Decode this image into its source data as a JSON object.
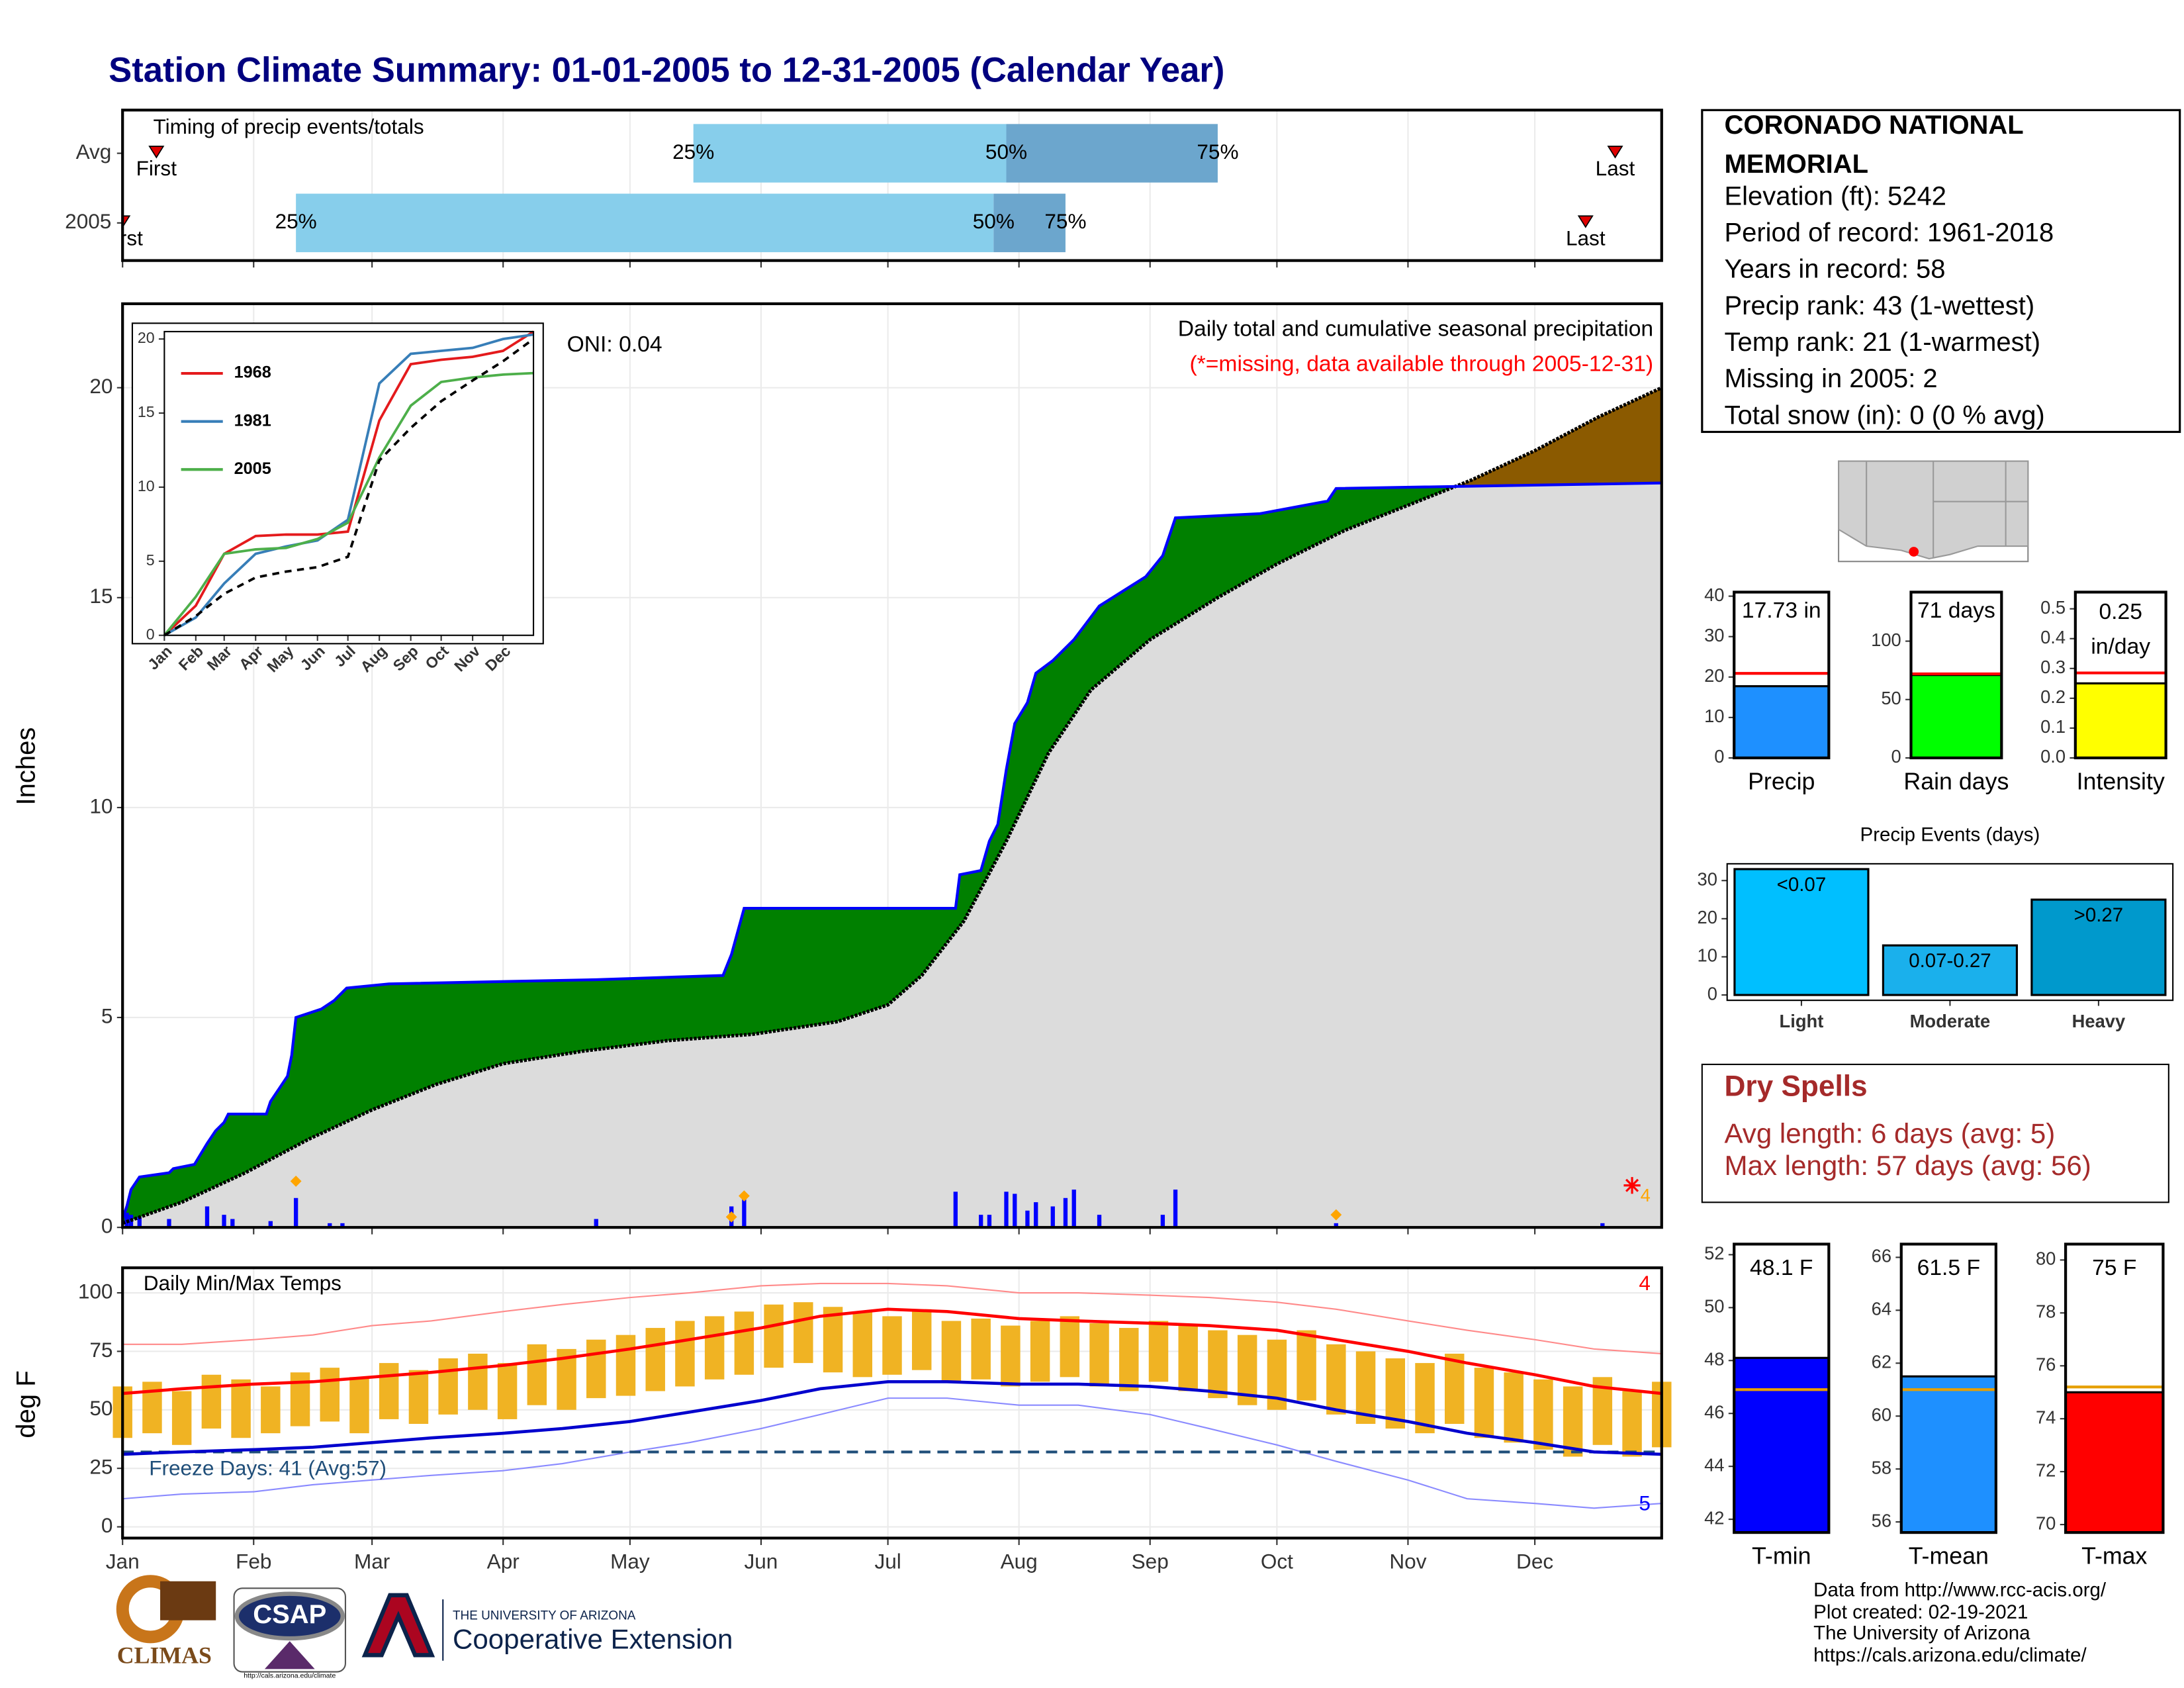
{
  "title": "Station Climate Summary: 01-01-2005 to 12-31-2005 (Calendar Year)",
  "station": {
    "name_lines": [
      "CORONADO NATIONAL",
      "MEMORIAL"
    ],
    "lines": [
      "Elevation (ft): 5242",
      "Period of record: 1961-2018",
      "Years in record: 58",
      "Precip rank: 43 (1-wettest)",
      "Temp rank: 21 (1-warmest)",
      "Missing in 2005: 2",
      "Total snow (in): 0 (0 % avg)"
    ]
  },
  "dry_spells": {
    "title": "Dry Spells",
    "lines": [
      "Avg length: 6 days (avg: 5)",
      "Max length: 57 days (avg: 56)"
    ]
  },
  "footer": [
    "Data from http://www.rcc-acis.org/",
    "Plot created: 02-19-2021",
    "The University of Arizona",
    "https://cals.arizona.edu/climate/"
  ],
  "logos": {
    "climas": "CLIMAS",
    "csap": "CSAP",
    "csap_url": "http://cals.arizona.edu/climate",
    "ua": "THE UNIVERSITY OF ARIZONA",
    "extension": "Cooperative Extension"
  },
  "chart_data": [
    {
      "type": "timing",
      "title": "Timing of precip events/totals",
      "categories": [
        "Avg",
        "2005"
      ],
      "first": [
        9,
        1
      ],
      "q25": [
        136,
        42
      ],
      "q50": [
        210,
        207
      ],
      "q75": [
        260,
        224
      ],
      "last": [
        354,
        347
      ],
      "labels": {
        "first": "First",
        "last": "Last",
        "q25": "25%",
        "q50": "50%",
        "q75": "75%"
      },
      "colors": [
        "#87ceeb",
        "#6ca6cd"
      ],
      "marker_color": "#e00000",
      "xlim": [
        1,
        365
      ],
      "xticks": [
        1,
        32,
        60,
        91,
        121,
        152,
        182,
        213,
        244,
        274,
        305,
        335
      ],
      "grid": true
    },
    {
      "type": "cumulative",
      "title": "Daily total and cumulative seasonal precipitation",
      "subtitle": "(*=missing, data available through 2005-12-31)",
      "annotation": "ONI: 0.04",
      "ylabel": "Inches",
      "xlim": [
        1,
        365
      ],
      "xticks": [
        1,
        32,
        60,
        91,
        121,
        152,
        182,
        213,
        244,
        274,
        305,
        335
      ],
      "ylim": [
        0,
        22
      ],
      "yticks": [
        0,
        5,
        10,
        15,
        20
      ],
      "grid": true,
      "fill_above": "#008000",
      "fill_below": "#8b5a00",
      "base_fill": "#dcdcdc",
      "series": [
        {
          "color": "#0000ff",
          "x": [
            1,
            2,
            3,
            5,
            12,
            13,
            18,
            21,
            23,
            25,
            26,
            35,
            36,
            38,
            40,
            41,
            42,
            48,
            51,
            54,
            64,
            113,
            143,
            145,
            148,
            198,
            199,
            204,
            206,
            208,
            210,
            212,
            215,
            217,
            221,
            226,
            232,
            243,
            247,
            250,
            270,
            286,
            288,
            365
          ],
          "values": [
            0.2,
            0.5,
            0.9,
            1.2,
            1.3,
            1.4,
            1.5,
            2.0,
            2.3,
            2.5,
            2.7,
            2.7,
            3.0,
            3.3,
            3.6,
            4.1,
            5.0,
            5.2,
            5.4,
            5.7,
            5.8,
            5.9,
            6.0,
            6.5,
            7.6,
            7.6,
            8.4,
            8.5,
            9.2,
            9.6,
            10.9,
            12.0,
            12.5,
            13.2,
            13.5,
            14.0,
            14.8,
            15.5,
            16.0,
            16.9,
            17.0,
            17.3,
            17.6,
            17.73
          ]
        },
        {
          "color": "#000000",
          "x": [
            1,
            15,
            30,
            45,
            60,
            75,
            91,
            110,
            130,
            150,
            170,
            182,
            190,
            200,
            210,
            220,
            230,
            244,
            260,
            274,
            290,
            305,
            320,
            335,
            350,
            365
          ],
          "values": [
            0.1,
            0.6,
            1.3,
            2.1,
            2.8,
            3.4,
            3.9,
            4.2,
            4.45,
            4.6,
            4.9,
            5.3,
            6.0,
            7.3,
            9.2,
            11.3,
            12.8,
            14.0,
            15.0,
            15.8,
            16.6,
            17.2,
            17.8,
            18.5,
            19.3,
            20.0
          ]
        }
      ],
      "daily": {
        "color": "#0000ff",
        "x": [
          2,
          3,
          5,
          12,
          21,
          25,
          27,
          36,
          42,
          50,
          53,
          113,
          145,
          148,
          198,
          204,
          206,
          210,
          212,
          215,
          217,
          221,
          224,
          226,
          232,
          247,
          250,
          288,
          351
        ],
        "values": [
          0.35,
          0.3,
          0.25,
          0.2,
          0.5,
          0.3,
          0.2,
          0.15,
          0.7,
          0.1,
          0.1,
          0.2,
          0.5,
          0.7,
          0.85,
          0.3,
          0.3,
          0.85,
          0.8,
          0.4,
          0.6,
          0.5,
          0.7,
          0.9,
          0.3,
          0.3,
          0.9,
          0.1,
          0.1
        ]
      },
      "extremes": {
        "color": "#ffa500",
        "x": [
          42,
          145,
          148,
          288
        ],
        "values": [
          1.1,
          0.25,
          0.75,
          0.3
        ]
      },
      "missing": {
        "color": "#ff0000",
        "x": [
          358
        ],
        "values": [
          1.0
        ],
        "label": "4",
        "label_color": "#ffa500"
      }
    },
    {
      "type": "line",
      "xlim": [
        1,
        365
      ],
      "xticks": [
        {
          "value": 1,
          "label": "Jan"
        },
        {
          "value": 32,
          "label": "Feb"
        },
        {
          "value": 60,
          "label": "Mar"
        },
        {
          "value": 91,
          "label": "Apr"
        },
        {
          "value": 121,
          "label": "May"
        },
        {
          "value": 152,
          "label": "Jun"
        },
        {
          "value": 182,
          "label": "Jul"
        },
        {
          "value": 213,
          "label": "Aug"
        },
        {
          "value": 244,
          "label": "Sep"
        },
        {
          "value": 274,
          "label": "Oct"
        },
        {
          "value": 305,
          "label": "Nov"
        },
        {
          "value": 335,
          "label": "Dec"
        }
      ],
      "ylim": [
        0,
        20.5
      ],
      "yticks": [
        0,
        5,
        10,
        15,
        20
      ],
      "x": [
        1,
        32,
        60,
        91,
        121,
        152,
        182,
        213,
        244,
        274,
        305,
        335,
        365
      ],
      "series": [
        {
          "name": "1968",
          "color": "#e41a1c",
          "values": [
            0,
            2.0,
            5.5,
            6.7,
            6.8,
            6.8,
            7.0,
            14.5,
            18.3,
            18.6,
            18.8,
            19.2,
            20.5
          ]
        },
        {
          "name": "1981",
          "color": "#377eb8",
          "values": [
            0,
            1.2,
            3.5,
            5.5,
            6.0,
            6.4,
            7.8,
            17.0,
            19.0,
            19.2,
            19.4,
            20.0,
            20.3
          ]
        },
        {
          "name": "2005",
          "color": "#4daf4a",
          "values": [
            0,
            2.6,
            5.5,
            5.8,
            5.9,
            6.5,
            7.6,
            12.0,
            15.5,
            17.1,
            17.4,
            17.6,
            17.7
          ]
        },
        {
          "color": "#000000",
          "dashed": true,
          "values": [
            0,
            1.3,
            2.8,
            3.9,
            4.3,
            4.6,
            5.3,
            11.8,
            14.0,
            15.8,
            17.2,
            18.5,
            20.0
          ]
        }
      ]
    },
    {
      "type": "bar",
      "categories": [
        "Precip"
      ],
      "values": [
        17.73
      ],
      "value_labels": [
        "17.73 in"
      ],
      "avg": 20.9,
      "avg_color": "#ff0000",
      "color": "#1e90ff",
      "ylim": [
        0,
        41
      ],
      "yticks": [
        0,
        10,
        20,
        30,
        40
      ]
    },
    {
      "type": "bar",
      "categories": [
        "Rain days"
      ],
      "values": [
        71
      ],
      "value_labels": [
        "71 days"
      ],
      "avg": 72,
      "avg_color": "#ff0000",
      "color": "#00ff00",
      "ylim": [
        0,
        142
      ],
      "yticks": [
        0,
        50,
        100
      ]
    },
    {
      "type": "bar",
      "categories": [
        "Intensity"
      ],
      "values": [
        0.25
      ],
      "value_labels": [
        "0.25"
      ],
      "unit_label": "in/day",
      "avg": 0.285,
      "avg_color": "#ff0000",
      "color": "#ffff00",
      "ylim": [
        0,
        0.556
      ],
      "yticks": [
        {
          "value": 0,
          "label": "0.0"
        },
        0.1,
        0.2,
        0.3,
        0.4,
        0.5
      ]
    },
    {
      "type": "bar",
      "title": "Precip Events (days)",
      "categories": [
        "Light",
        "Moderate",
        "Heavy"
      ],
      "values": [
        33,
        13,
        25
      ],
      "value_labels": [
        "<0.07",
        "0.07-0.27",
        ">0.27"
      ],
      "colors": [
        "#00bfff",
        "#1ab0ec",
        "#0099cc"
      ],
      "ylim": [
        -1.4,
        34.4
      ],
      "yticks": [
        0,
        10,
        20,
        30
      ]
    },
    {
      "type": "temps",
      "title": "Daily Min/Max Temps",
      "ylabel": "deg F",
      "xlim": [
        1,
        365
      ],
      "xticks": [
        {
          "value": 1,
          "label": "Jan"
        },
        {
          "value": 32,
          "label": "Feb"
        },
        {
          "value": 60,
          "label": "Mar"
        },
        {
          "value": 91,
          "label": "Apr"
        },
        {
          "value": 121,
          "label": "May"
        },
        {
          "value": 152,
          "label": "Jun"
        },
        {
          "value": 182,
          "label": "Jul"
        },
        {
          "value": 213,
          "label": "Aug"
        },
        {
          "value": 244,
          "label": "Sep"
        },
        {
          "value": 274,
          "label": "Oct"
        },
        {
          "value": 305,
          "label": "Nov"
        },
        {
          "value": 335,
          "label": "Dec"
        }
      ],
      "ylim": [
        -4.8,
        110.7
      ],
      "yticks": [
        0,
        25,
        50,
        75,
        100
      ],
      "grid": true,
      "x": [
        1,
        15,
        32,
        46,
        60,
        74,
        91,
        105,
        121,
        135,
        152,
        166,
        182,
        196,
        213,
        227,
        244,
        258,
        274,
        288,
        305,
        319,
        335,
        349,
        365
      ],
      "avg_max": [
        57,
        59,
        61,
        62,
        64,
        66,
        69,
        72,
        76,
        80,
        85,
        90,
        93,
        92,
        89,
        88,
        87,
        86,
        84,
        80,
        75,
        70,
        65,
        60,
        57
      ],
      "avg_min": [
        31,
        32,
        33,
        34,
        36,
        38,
        40,
        42,
        45,
        49,
        54,
        59,
        62,
        62,
        61,
        61,
        60,
        58,
        55,
        50,
        45,
        40,
        36,
        32,
        31
      ],
      "record_max": [
        78,
        78,
        80,
        82,
        86,
        88,
        92,
        95,
        98,
        100,
        103,
        104,
        104,
        103,
        100,
        100,
        99,
        98,
        96,
        93,
        88,
        84,
        80,
        76,
        74
      ],
      "record_min": [
        12,
        14,
        15,
        18,
        20,
        22,
        24,
        27,
        32,
        36,
        42,
        48,
        55,
        55,
        52,
        52,
        48,
        42,
        35,
        28,
        20,
        12,
        10,
        8,
        10
      ],
      "colors": {
        "avg_max": "#ff0000",
        "avg_min": "#0000cd",
        "record_max": "#ff8a8a",
        "record_min": "#8a8aff",
        "daily": "#f0b323",
        "freeze": "#1f4e79"
      },
      "daily": {
        "x": [
          1,
          8,
          15,
          22,
          29,
          36,
          43,
          50,
          57,
          64,
          71,
          78,
          85,
          92,
          99,
          106,
          113,
          120,
          127,
          134,
          141,
          148,
          155,
          162,
          169,
          176,
          183,
          190,
          197,
          204,
          211,
          218,
          225,
          232,
          239,
          246,
          253,
          260,
          267,
          274,
          281,
          288,
          295,
          302,
          309,
          316,
          323,
          330,
          337,
          344,
          351,
          358,
          365
        ],
        "max": [
          60,
          62,
          58,
          65,
          63,
          60,
          66,
          68,
          64,
          70,
          67,
          72,
          74,
          70,
          78,
          76,
          80,
          82,
          85,
          88,
          90,
          92,
          95,
          96,
          94,
          92,
          90,
          93,
          88,
          89,
          86,
          88,
          90,
          87,
          85,
          88,
          86,
          84,
          82,
          80,
          84,
          78,
          75,
          72,
          70,
          74,
          68,
          66,
          63,
          60,
          64,
          58,
          62
        ],
        "min": [
          38,
          40,
          35,
          42,
          38,
          40,
          43,
          45,
          40,
          46,
          44,
          48,
          50,
          46,
          52,
          50,
          55,
          56,
          58,
          60,
          63,
          65,
          68,
          70,
          66,
          64,
          65,
          67,
          62,
          63,
          60,
          62,
          64,
          60,
          58,
          62,
          58,
          55,
          52,
          50,
          54,
          48,
          44,
          42,
          40,
          44,
          38,
          36,
          33,
          30,
          35,
          30,
          34
        ]
      },
      "freeze_line": 32,
      "annotation": "Freeze Days: 41 (Avg:57)",
      "annotation_max": "4",
      "annotation_min": "5"
    },
    {
      "type": "bar",
      "categories": [
        "T-min"
      ],
      "values": [
        48.1
      ],
      "value_labels": [
        "48.1 F"
      ],
      "avg": 46.9,
      "avg_color": "#e69f00",
      "color": "#0000ff",
      "ylim": [
        41.5,
        52.4
      ],
      "yticks": [
        42,
        44,
        46,
        48,
        50,
        52
      ]
    },
    {
      "type": "bar",
      "categories": [
        "T-mean"
      ],
      "values": [
        61.5
      ],
      "value_labels": [
        "61.5 F"
      ],
      "avg": 61.0,
      "avg_color": "#e69f00",
      "color": "#1e90ff",
      "ylim": [
        55.6,
        66.5
      ],
      "yticks": [
        56,
        58,
        60,
        62,
        64,
        66
      ]
    },
    {
      "type": "bar",
      "categories": [
        "T-max"
      ],
      "values": [
        75
      ],
      "value_labels": [
        "75 F"
      ],
      "avg": 75.2,
      "avg_color": "#e69f00",
      "color": "#ff0000",
      "ylim": [
        69.7,
        80.6
      ],
      "yticks": [
        70,
        72,
        74,
        76,
        78,
        80
      ]
    }
  ]
}
